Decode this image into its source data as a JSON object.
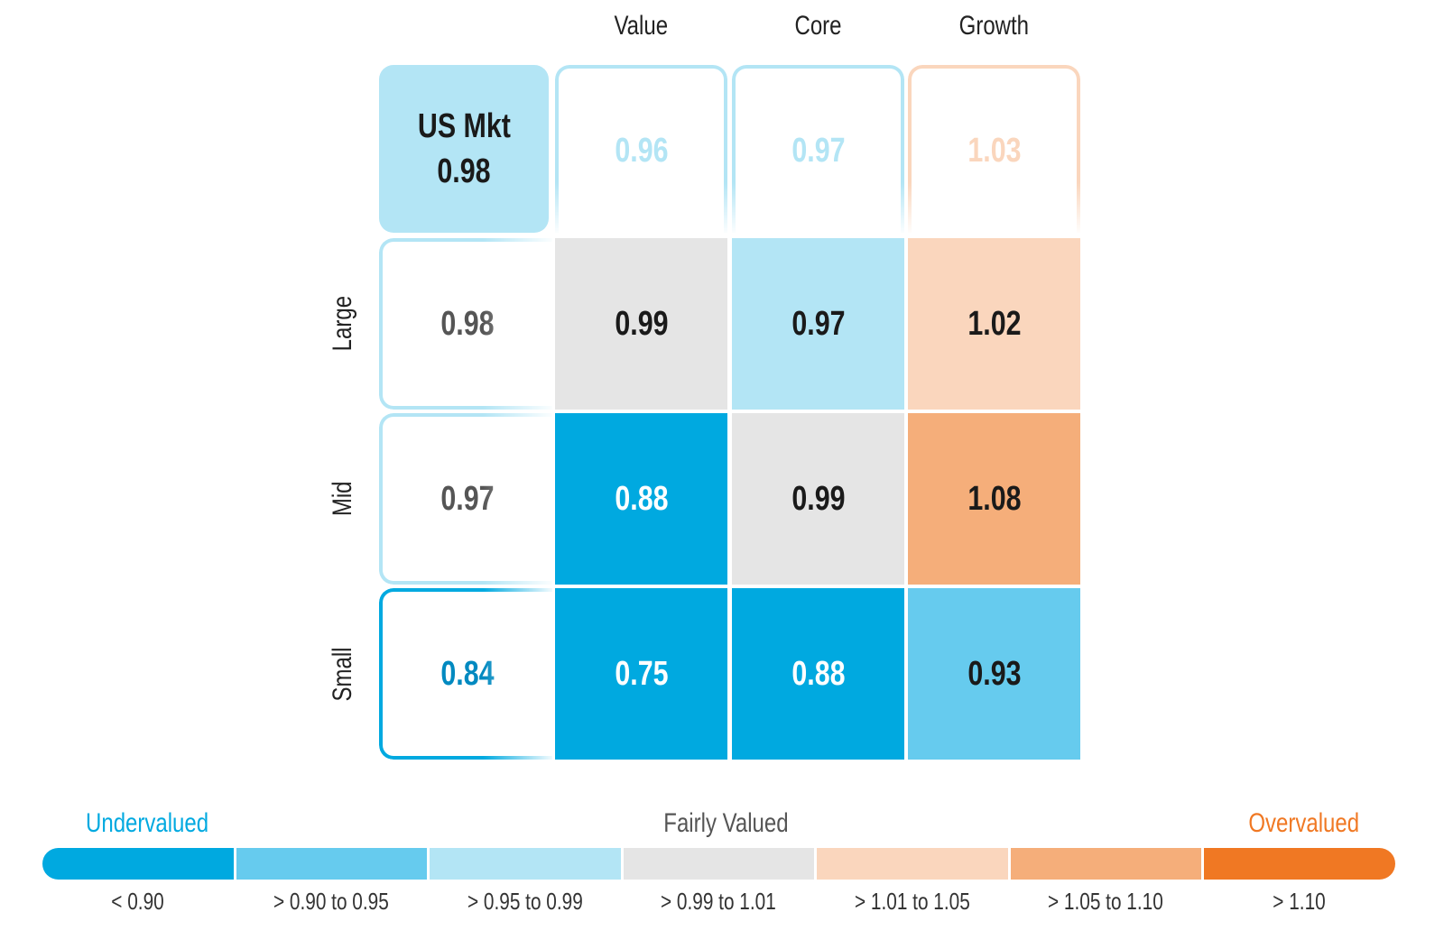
{
  "chart_data": {
    "type": "heatmap",
    "columns": [
      "Value",
      "Core",
      "Growth"
    ],
    "rows": [
      "Large",
      "Mid",
      "Small"
    ],
    "market": {
      "label": "US Mkt",
      "value": "0.98"
    },
    "column_totals": [
      "0.96",
      "0.97",
      "1.03"
    ],
    "row_totals": [
      "0.98",
      "0.97",
      "0.84"
    ],
    "values": [
      [
        "0.99",
        "0.97",
        "1.02"
      ],
      [
        "0.88",
        "0.99",
        "1.08"
      ],
      [
        "0.75",
        "0.88",
        "0.93"
      ]
    ],
    "legend": {
      "left_label": "Undervalued",
      "center_label": "Fairly Valued",
      "right_label": "Overvalued",
      "bins": [
        {
          "label": "< 0.90",
          "color": "#00a9e0",
          "max": 0.9
        },
        {
          "label": "> 0.90 to 0.95",
          "color": "#66cbee",
          "max": 0.95
        },
        {
          "label": "> 0.95 to 0.99",
          "color": "#b3e5f5",
          "max": 0.99
        },
        {
          "label": "> 0.99 to 1.01",
          "color": "#e5e5e5",
          "max": 1.01
        },
        {
          "label": "> 1.01 to 1.05",
          "color": "#fad6bd",
          "max": 1.05
        },
        {
          "label": "> 1.05 to 1.10",
          "color": "#f5ae7a",
          "max": 1.1
        },
        {
          "label": "> 1.10",
          "color": "#f07823",
          "max": 99
        }
      ],
      "colors": {
        "under": "#00a9e0",
        "fair": "#555555",
        "over": "#f07823"
      }
    }
  }
}
